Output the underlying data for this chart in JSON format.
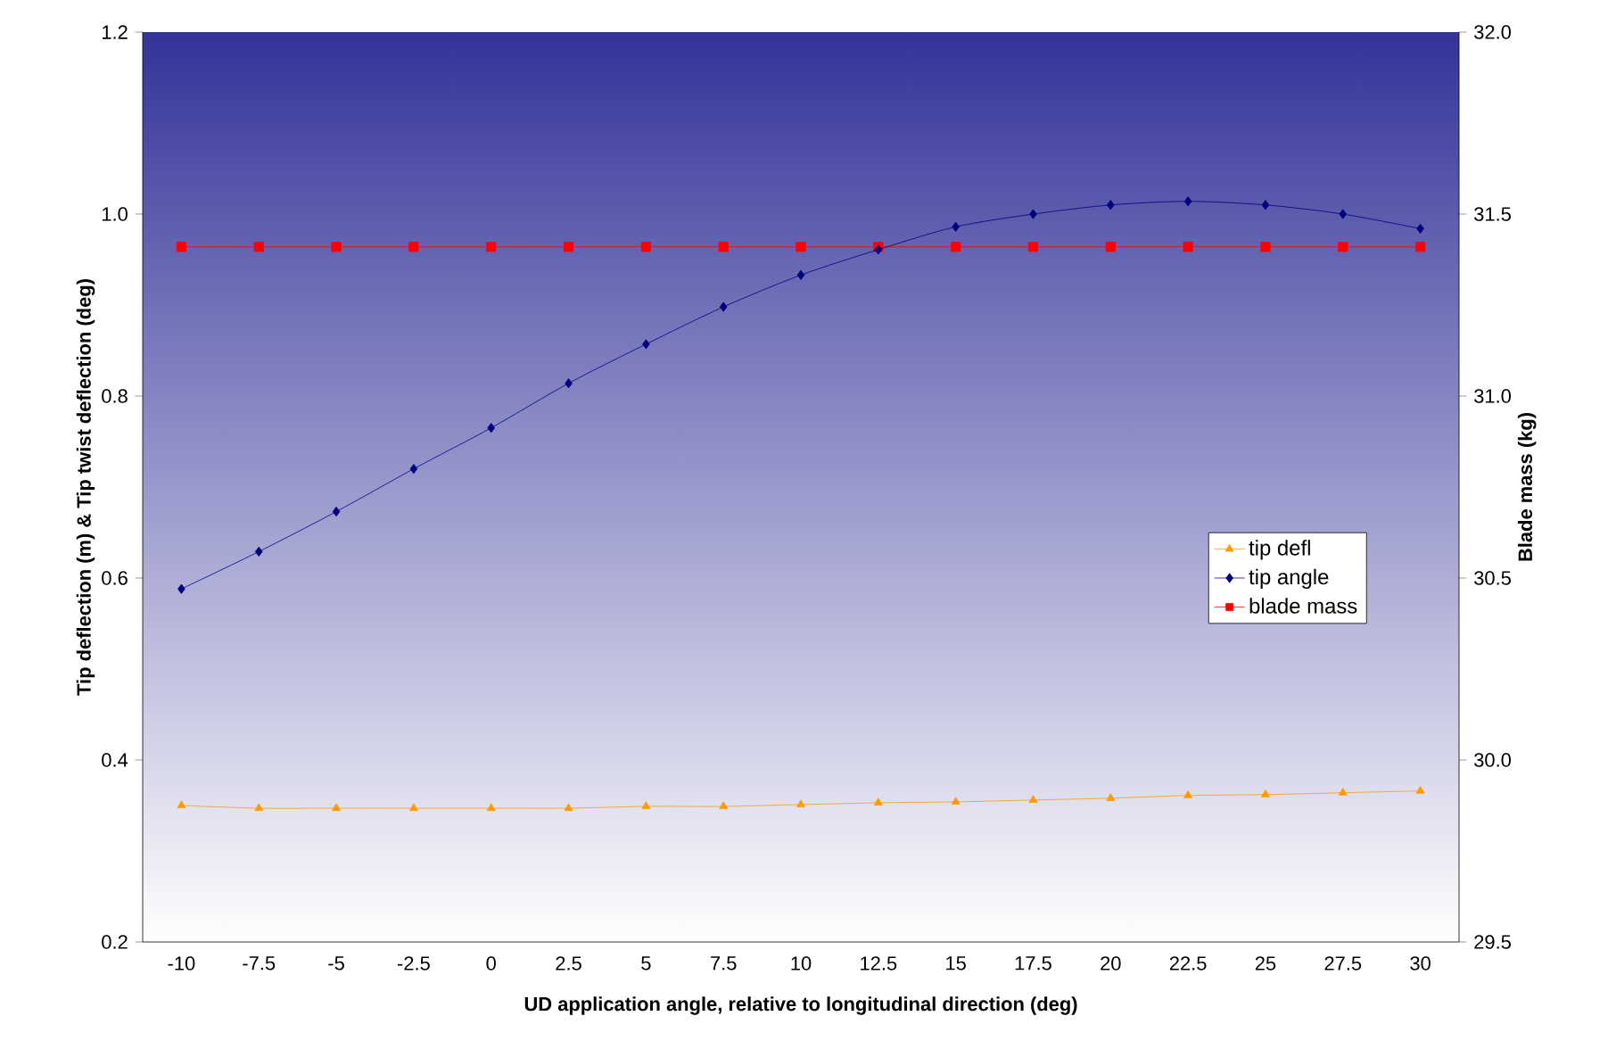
{
  "chart_data": {
    "type": "line",
    "xlabel": "UD application angle, relative to longitudinal direction (deg)",
    "ylabel": "Tip deflection (m) & Tip twist deflection (deg)",
    "y2label": "Blade mass (kg)",
    "categories": [
      "-10",
      "-7.5",
      "-5",
      "-2.5",
      "0",
      "2.5",
      "5",
      "7.5",
      "10",
      "12.5",
      "15",
      "17.5",
      "20",
      "22.5",
      "25",
      "27.5",
      "30"
    ],
    "series": [
      {
        "name": "tip defl",
        "color": "#ff9900",
        "marker": "triangle",
        "values": [
          0.35,
          0.347,
          0.347,
          0.347,
          0.347,
          0.347,
          0.349,
          0.349,
          0.351,
          0.353,
          0.354,
          0.356,
          0.358,
          0.361,
          0.362,
          0.364,
          0.366
        ]
      },
      {
        "name": "tip angle",
        "color": "#000080",
        "marker": "diamond",
        "values": [
          0.588,
          0.629,
          0.673,
          0.72,
          0.765,
          0.814,
          0.857,
          0.898,
          0.933,
          0.961,
          0.986,
          1.0,
          1.01,
          1.014,
          1.01,
          1.0,
          0.984
        ]
      },
      {
        "name": "blade mass",
        "color": "#ff0000",
        "marker": "square",
        "axis": "y2",
        "values": [
          31.41,
          31.41,
          31.41,
          31.41,
          31.41,
          31.41,
          31.41,
          31.41,
          31.41,
          31.41,
          31.41,
          31.41,
          31.41,
          31.41,
          31.41,
          31.41,
          31.41
        ]
      }
    ],
    "ylim": [
      0.2,
      1.2
    ],
    "yticks": [
      {
        "value": 0.2,
        "label": "0.2"
      },
      {
        "value": 0.4,
        "label": "0.4"
      },
      {
        "value": 0.6,
        "label": "0.6"
      },
      {
        "value": 0.8,
        "label": "0.8"
      },
      {
        "value": 1.0,
        "label": "1.0"
      },
      {
        "value": 1.2,
        "label": "1.2"
      }
    ],
    "y2lim": [
      29.5,
      32.0
    ],
    "y2ticks": [
      {
        "value": 29.5,
        "label": "29.5"
      },
      {
        "value": 30.0,
        "label": "30.0"
      },
      {
        "value": 30.5,
        "label": "30.5"
      },
      {
        "value": 31.0,
        "label": "31.0"
      },
      {
        "value": 31.5,
        "label": "31.5"
      },
      {
        "value": 32.0,
        "label": "32.0"
      }
    ],
    "grid": false,
    "legend": "right",
    "line_style": "solid"
  }
}
